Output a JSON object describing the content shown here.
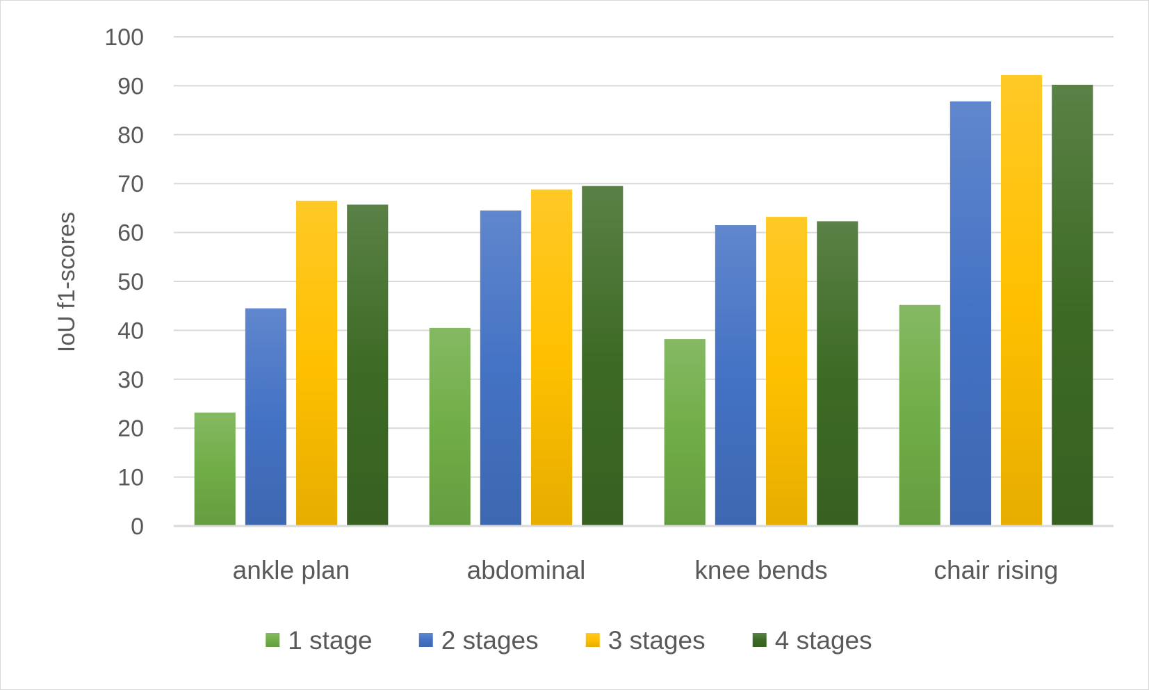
{
  "chart_data": {
    "type": "bar",
    "title": "",
    "xlabel": "",
    "ylabel": "IoU f1-scores",
    "ylim": [
      0,
      100
    ],
    "yticks": [
      "0",
      "10",
      "20",
      "30",
      "40",
      "50",
      "60",
      "70",
      "80",
      "90",
      "100"
    ],
    "grid": true,
    "legend_position": "bottom",
    "categories": [
      "ankle plan",
      "abdominal",
      "knee bends",
      "chair rising"
    ],
    "series": [
      {
        "name": "1 stage",
        "color": "#70ad47",
        "values": [
          23.2,
          40.5,
          38.2,
          45.2
        ]
      },
      {
        "name": "2 stages",
        "color": "#4472c4",
        "values": [
          44.5,
          64.5,
          61.5,
          86.8
        ]
      },
      {
        "name": "3 stages",
        "color": "#ffc000",
        "values": [
          66.5,
          68.8,
          63.2,
          92.2
        ]
      },
      {
        "name": "4 stages",
        "color": "#3d6b25",
        "values": [
          65.7,
          69.5,
          62.3,
          90.2
        ]
      }
    ]
  }
}
